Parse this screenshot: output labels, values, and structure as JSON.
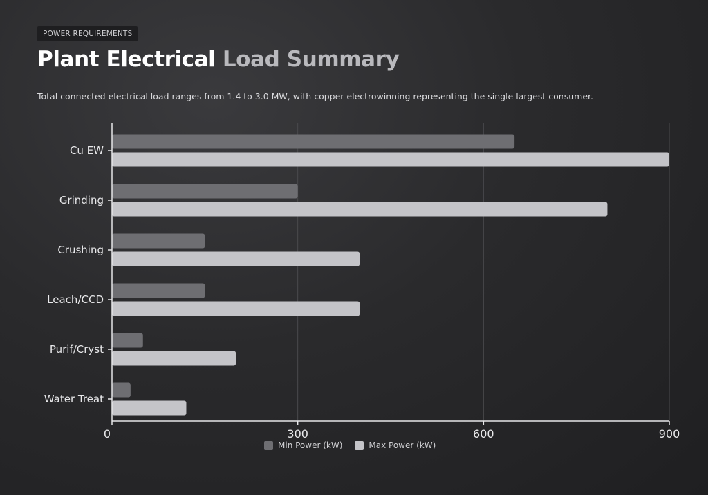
{
  "header": {
    "eyebrow": "POWER REQUIREMENTS",
    "title_part1": "Plant Electrical",
    "title_part2": "Load Summary",
    "subtitle": "Total connected electrical load ranges from 1.4 to 3.0 MW, with copper electrowinning representing the single largest consumer."
  },
  "colors": {
    "min_series": "#6e6e72",
    "max_series": "#c4c4c8",
    "axis": "#e6e6e8",
    "grid": "#4a4a4d"
  },
  "chart_data": {
    "type": "bar",
    "orientation": "horizontal",
    "categories": [
      "Cu EW",
      "Grinding",
      "Crushing",
      "Leach/CCD",
      "Purif/Cryst",
      "Water Treat"
    ],
    "series": [
      {
        "name": "Min Power (kW)",
        "values": [
          650,
          300,
          150,
          150,
          50,
          30
        ]
      },
      {
        "name": "Max Power (kW)",
        "values": [
          900,
          800,
          400,
          400,
          200,
          120
        ]
      }
    ],
    "xlim": [
      0,
      900
    ],
    "xticks": [
      "0",
      "300",
      "600",
      "900"
    ],
    "grid": true,
    "legend_position": "bottom"
  }
}
